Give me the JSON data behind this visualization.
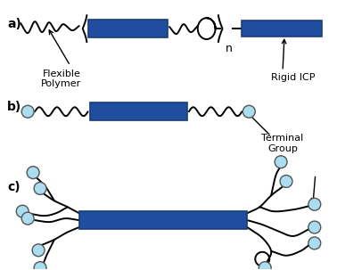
{
  "bg_color": "#ffffff",
  "block_color": "#1f4e9e",
  "block_edge_color": "#1a3d7a",
  "line_color": "#000000",
  "circle_color": "#aaddf0",
  "circle_edge_color": "#555555",
  "label_a": "a)",
  "label_b": "b)",
  "label_c": "c)",
  "label_flexible": "Flexible\nPolymer",
  "label_rigid": "Rigid ICP",
  "label_terminal": "Terminal\nGroup",
  "label_n": "n",
  "figsize": [
    3.78,
    3.03
  ],
  "dpi": 100
}
